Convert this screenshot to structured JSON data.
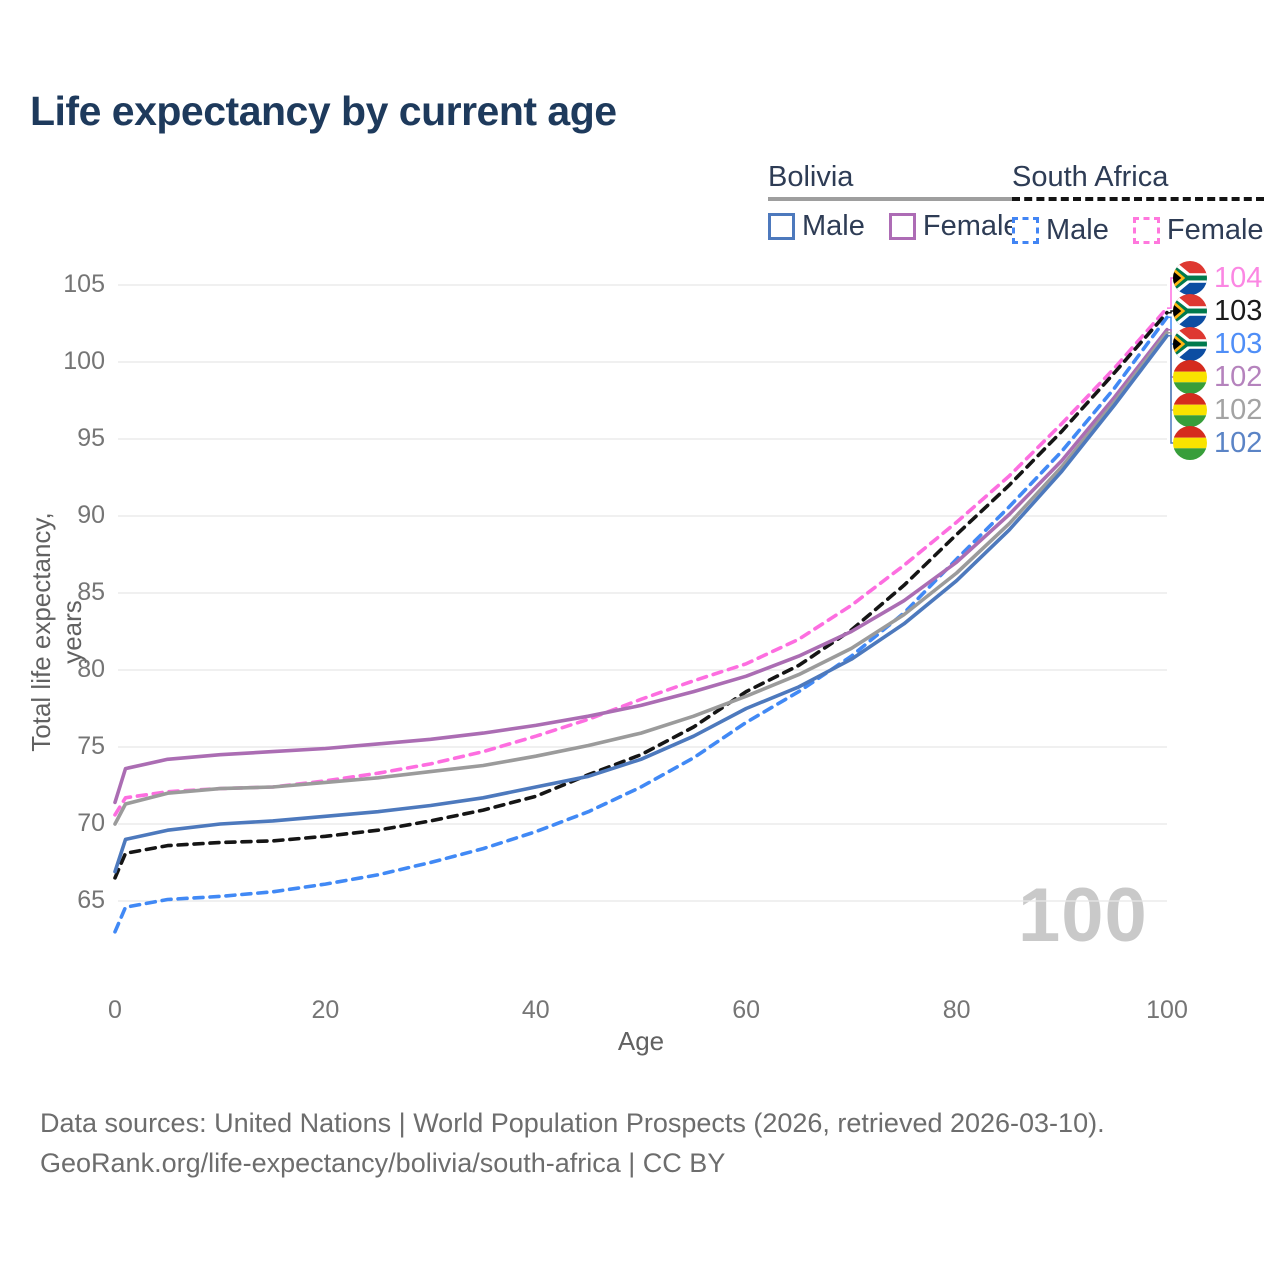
{
  "title": "Life expectancy by current age",
  "watermark": "100",
  "colors": {
    "title_text": "#1e3a5c",
    "legend_text": "#2e3c55",
    "axis_text": "#757575",
    "grid": "#e7e7e7",
    "watermark": "#c9c9c9"
  },
  "legend": {
    "position": "top-right",
    "groups": [
      {
        "name": "Bolivia",
        "line_style": "solid",
        "underline_color": "#9e9e9e",
        "items": [
          {
            "label": "Male",
            "color": "#4d79bd"
          },
          {
            "label": "Female",
            "color": "#ad6cb5"
          }
        ]
      },
      {
        "name": "South Africa",
        "line_style": "dashed",
        "underline_color": "#141414",
        "items": [
          {
            "label": "Male",
            "color": "#4285f4"
          },
          {
            "label": "Female",
            "color": "#ff77dd"
          }
        ]
      }
    ]
  },
  "chart_data": {
    "type": "line",
    "title": "Life expectancy by current age",
    "xlabel": "Age",
    "ylabel": "Total life expectancy, years",
    "xlim": [
      0,
      100
    ],
    "ylim": [
      65,
      105
    ],
    "x_ticks": [
      0,
      20,
      40,
      60,
      80,
      100
    ],
    "y_ticks": [
      65,
      70,
      75,
      80,
      85,
      90,
      95,
      100,
      105
    ],
    "grid": "horizontal",
    "legend_position": "top-right",
    "x": [
      0,
      1,
      5,
      10,
      15,
      20,
      25,
      30,
      35,
      40,
      45,
      50,
      55,
      60,
      65,
      70,
      75,
      80,
      85,
      90,
      95,
      100
    ],
    "series": [
      {
        "id": "south-africa-female",
        "name": "South Africa Female",
        "country": "South Africa",
        "sex": "Female",
        "flag": "south-africa",
        "color": "#fd6ee0",
        "dash": "dashed",
        "end_label": "104",
        "label_color": "#fb87e3",
        "values": [
          70.6,
          71.7,
          72.1,
          72.3,
          72.4,
          72.8,
          73.3,
          73.9,
          74.7,
          75.7,
          76.8,
          78.1,
          79.3,
          80.4,
          82.0,
          84.2,
          86.8,
          89.6,
          92.6,
          96.0,
          99.6,
          103.5
        ]
      },
      {
        "id": "south-africa-both",
        "name": "South Africa",
        "country": "South Africa",
        "sex": "Both",
        "flag": "south-africa",
        "color": "#151515",
        "dash": "dashed",
        "end_label": "103",
        "label_color": "#1a1a1a",
        "values": [
          66.5,
          68.1,
          68.6,
          68.8,
          68.9,
          69.2,
          69.6,
          70.2,
          70.9,
          71.8,
          73.2,
          74.5,
          76.3,
          78.6,
          80.3,
          82.6,
          85.5,
          88.8,
          92.0,
          95.5,
          99.3,
          103.2
        ]
      },
      {
        "id": "south-africa-male",
        "name": "South Africa Male",
        "country": "South Africa",
        "sex": "Male",
        "flag": "south-africa",
        "color": "#4189f5",
        "dash": "dashed",
        "end_label": "103",
        "label_color": "#4f8ef7",
        "values": [
          63.0,
          64.6,
          65.1,
          65.3,
          65.6,
          66.1,
          66.7,
          67.5,
          68.4,
          69.5,
          70.8,
          72.4,
          74.3,
          76.6,
          78.6,
          80.9,
          83.7,
          87.2,
          90.6,
          94.2,
          98.3,
          102.9
        ]
      },
      {
        "id": "bolivia-female",
        "name": "Bolivia Female",
        "country": "Bolivia",
        "sex": "Female",
        "flag": "bolivia",
        "color": "#ab6db3",
        "dash": "solid",
        "end_label": "102",
        "label_color": "#b583bd",
        "values": [
          71.4,
          73.6,
          74.2,
          74.5,
          74.7,
          74.9,
          75.2,
          75.5,
          75.9,
          76.4,
          77.0,
          77.7,
          78.6,
          79.6,
          80.9,
          82.5,
          84.5,
          87.0,
          90.1,
          93.6,
          97.7,
          102.1
        ]
      },
      {
        "id": "bolivia-both",
        "name": "Bolivia",
        "country": "Bolivia",
        "sex": "Both",
        "flag": "bolivia",
        "color": "#9b9b9b",
        "dash": "solid",
        "end_label": "102",
        "label_color": "#a3a3a3",
        "values": [
          70.0,
          71.3,
          72.0,
          72.3,
          72.4,
          72.7,
          73.0,
          73.4,
          73.8,
          74.4,
          75.1,
          75.9,
          77.0,
          78.3,
          79.7,
          81.4,
          83.6,
          86.3,
          89.5,
          93.2,
          97.4,
          101.9
        ]
      },
      {
        "id": "bolivia-male",
        "name": "Bolivia Male",
        "country": "Bolivia",
        "sex": "Male",
        "flag": "bolivia",
        "color": "#4d79bd",
        "dash": "solid",
        "end_label": "102",
        "label_color": "#5b84c6",
        "values": [
          66.9,
          69.0,
          69.6,
          70.0,
          70.2,
          70.5,
          70.8,
          71.2,
          71.7,
          72.4,
          73.1,
          74.2,
          75.7,
          77.5,
          78.9,
          80.7,
          83.0,
          85.8,
          89.1,
          92.9,
          97.2,
          101.7
        ]
      }
    ]
  },
  "footer": {
    "line1": "Data sources: United Nations | World Population Prospects (2026, retrieved 2026-03-10).",
    "line2": "GeoRank.org/life-expectancy/bolivia/south-africa | CC BY"
  }
}
